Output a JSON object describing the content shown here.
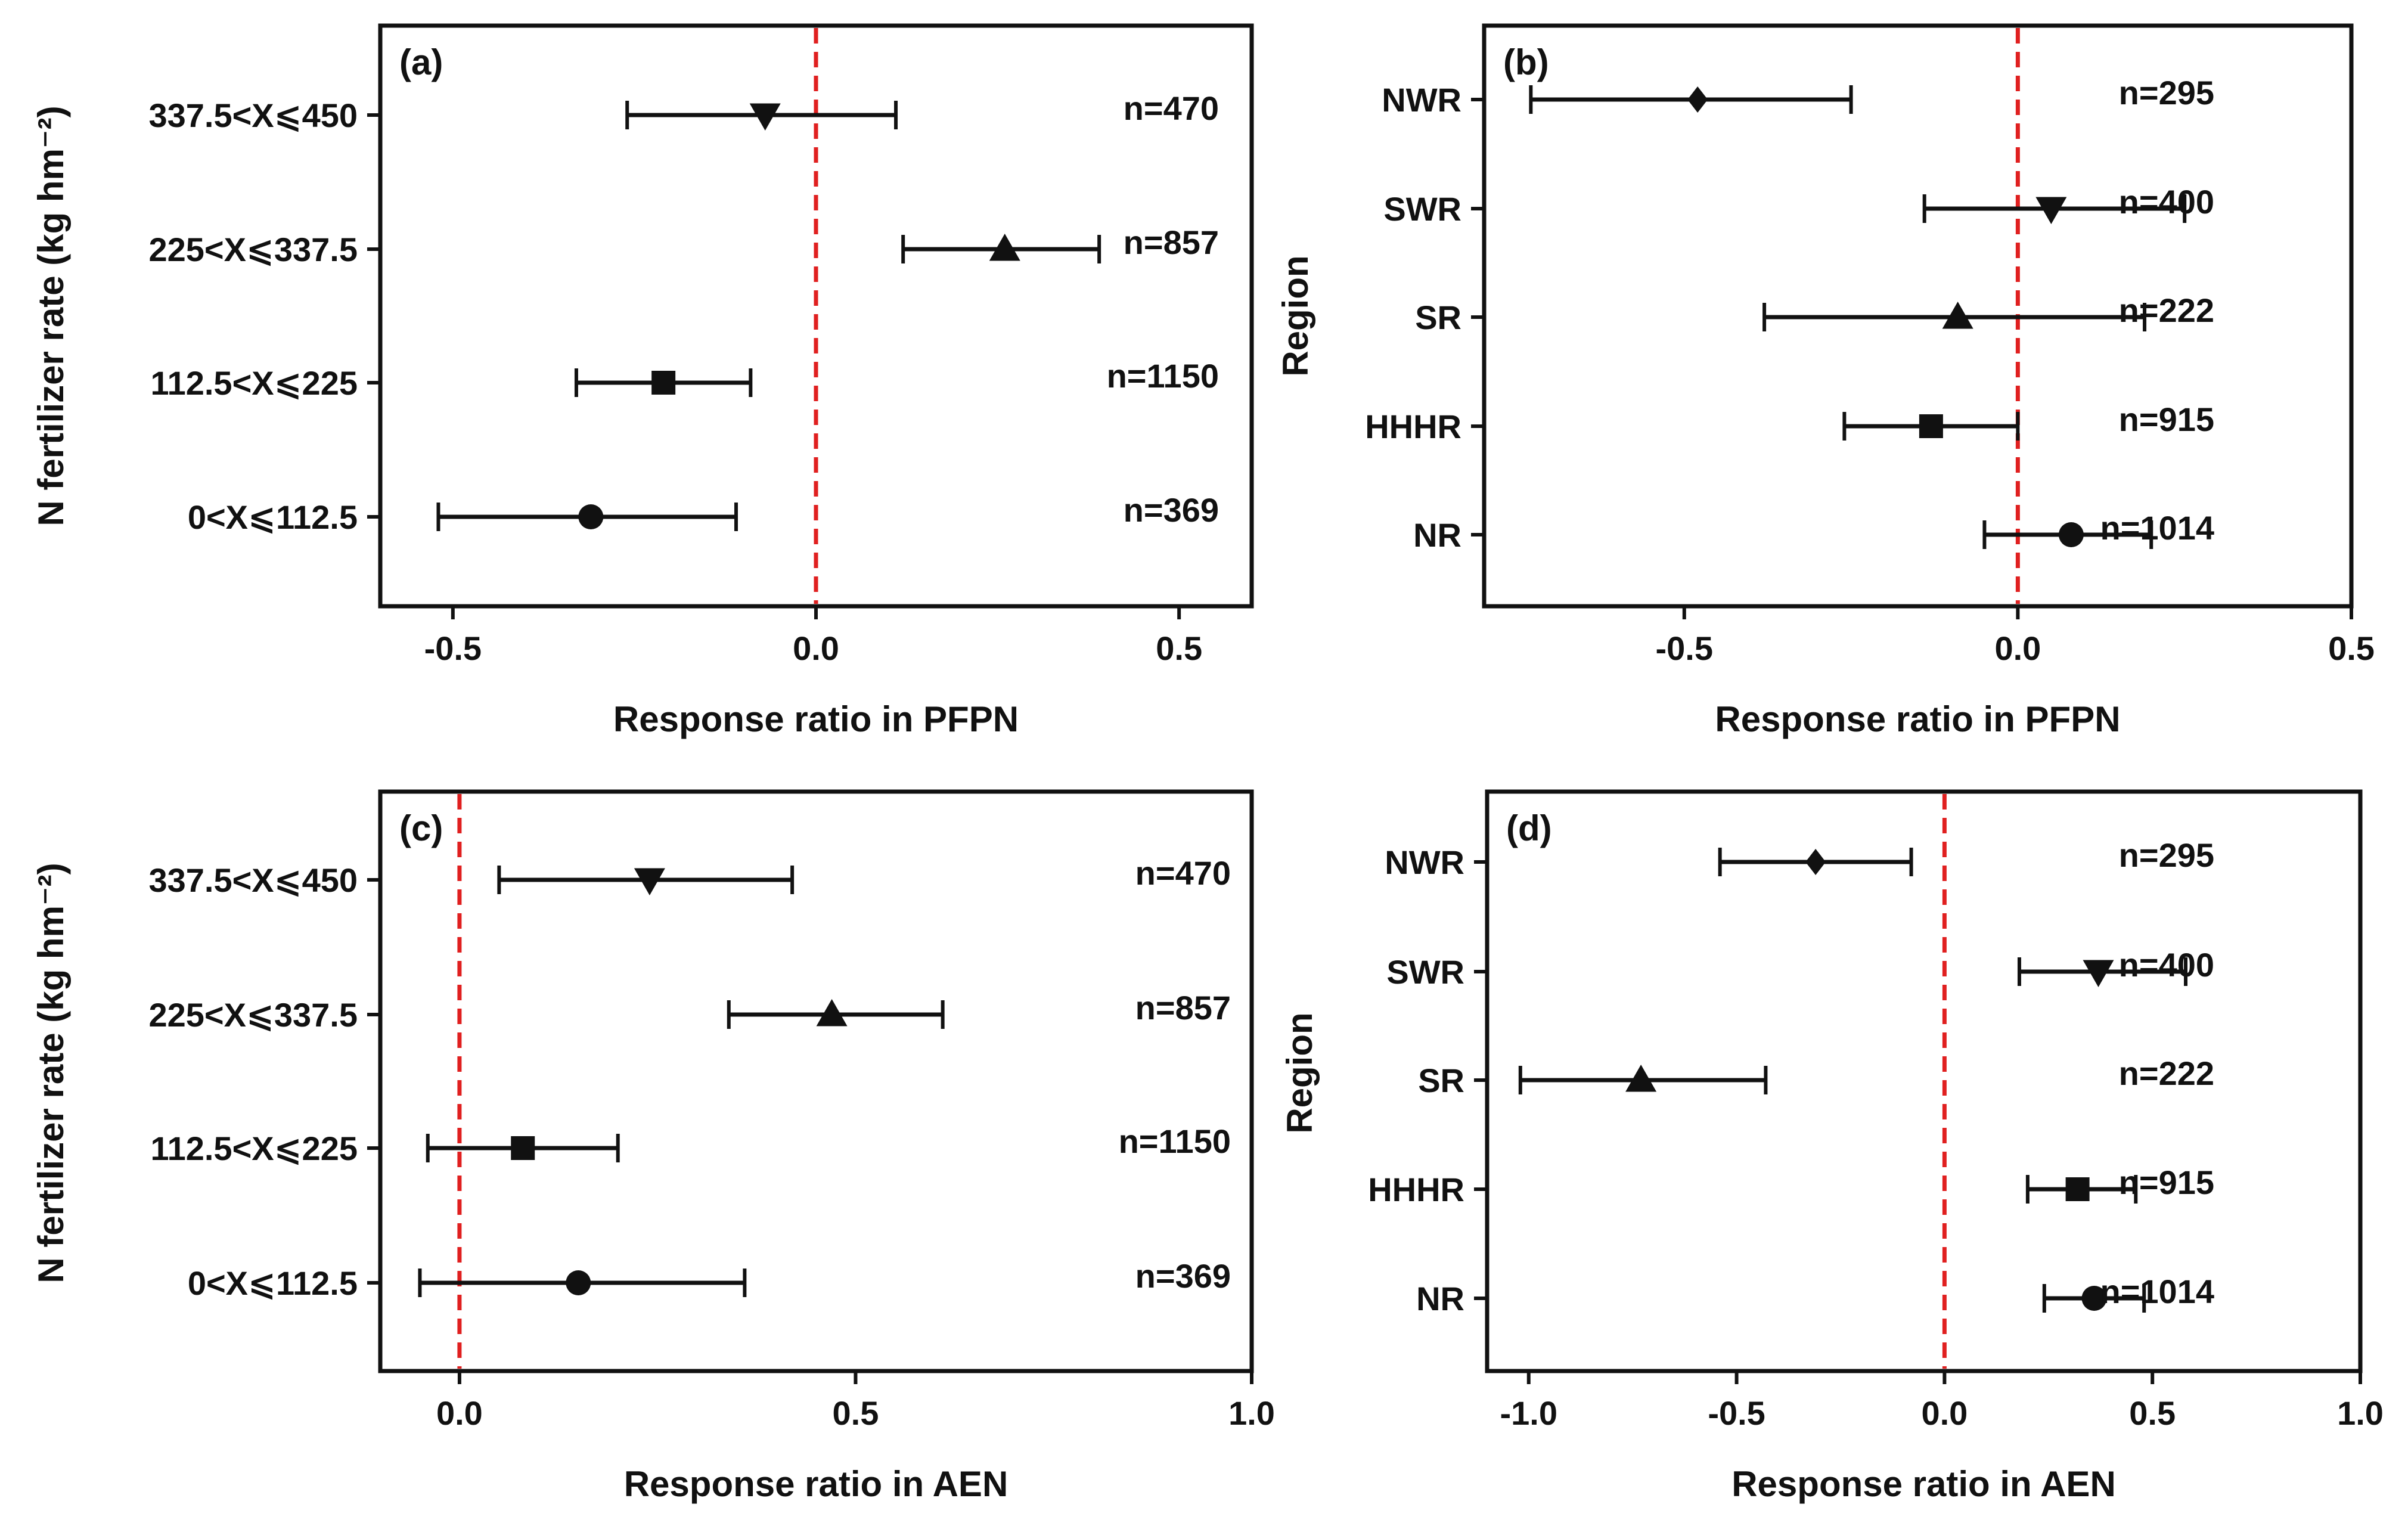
{
  "figure": {
    "colors": {
      "axis": "#111111",
      "reference_line": "#e02020",
      "marker": "#111111",
      "background": "#ffffff"
    }
  },
  "chart_data": [
    {
      "type": "forest",
      "panel_label": "(a)",
      "title": "",
      "xlabel": "Response ratio in PFPN",
      "ylabel": "N fertilizer rate (kg hm⁻²)",
      "xlim": [
        -0.6,
        0.6
      ],
      "xticks": [
        -0.5,
        0.0,
        0.5
      ],
      "xtick_labels": [
        "-0.5",
        "0.0",
        "0.5"
      ],
      "reference_line": 0,
      "categories": [
        "337.5<X⩽450",
        "225<X⩽337.5",
        "112.5<X⩽225",
        "0<X⩽112.5"
      ],
      "mean": [
        -0.07,
        0.26,
        -0.21,
        -0.31
      ],
      "lower": [
        -0.26,
        0.12,
        -0.33,
        -0.52
      ],
      "upper": [
        0.11,
        0.39,
        -0.09,
        -0.11
      ],
      "markers": [
        "triangle-down",
        "triangle-up",
        "square",
        "circle"
      ],
      "n_labels": [
        "n=470",
        "n=857",
        "n=1150",
        "n=369"
      ]
    },
    {
      "type": "forest",
      "panel_label": "(b)",
      "title": "",
      "xlabel": "Response ratio in PFPN",
      "ylabel": "Region",
      "xlim": [
        -0.8,
        0.5
      ],
      "xticks": [
        -0.5,
        0.0,
        0.5
      ],
      "xtick_labels": [
        "-0.5",
        "0.0",
        "0.5"
      ],
      "reference_line": 0,
      "categories": [
        "NWR",
        "SWR",
        "SR",
        "HHHR",
        "NR"
      ],
      "mean": [
        -0.48,
        0.05,
        -0.09,
        -0.13,
        0.08
      ],
      "lower": [
        -0.73,
        -0.14,
        -0.38,
        -0.26,
        -0.05
      ],
      "upper": [
        -0.25,
        0.25,
        0.19,
        0.0,
        0.2
      ],
      "markers": [
        "diamond",
        "triangle-down",
        "triangle-up",
        "square",
        "circle"
      ],
      "n_labels": [
        "n=295",
        "n=400",
        "n=222",
        "n=915",
        "n=1014"
      ]
    },
    {
      "type": "forest",
      "panel_label": "(c)",
      "title": "",
      "xlabel": "Response ratio in AEN",
      "ylabel": "N fertilizer rate (kg hm⁻²)",
      "xlim": [
        -0.1,
        1.0
      ],
      "xticks": [
        0.0,
        0.5,
        1.0
      ],
      "xtick_labels": [
        "0.0",
        "0.5",
        "1.0"
      ],
      "reference_line": 0,
      "categories": [
        "337.5<X⩽450",
        "225<X⩽337.5",
        "112.5<X⩽225",
        "0<X⩽112.5"
      ],
      "mean": [
        0.24,
        0.47,
        0.08,
        0.15
      ],
      "lower": [
        0.05,
        0.34,
        -0.04,
        -0.05
      ],
      "upper": [
        0.42,
        0.61,
        0.2,
        0.36
      ],
      "markers": [
        "triangle-down",
        "triangle-up",
        "square",
        "circle"
      ],
      "n_labels": [
        "n=470",
        "n=857",
        "n=1150",
        "n=369"
      ]
    },
    {
      "type": "forest",
      "panel_label": "(d)",
      "title": "",
      "xlabel": "Response ratio in AEN",
      "ylabel": "Region",
      "xlim": [
        -1.1,
        1.0
      ],
      "xticks": [
        -1.0,
        -0.5,
        0.0,
        0.5,
        1.0
      ],
      "xtick_labels": [
        "-1.0",
        "-0.5",
        "0.0",
        "0.5",
        "1.0"
      ],
      "reference_line": 0,
      "categories": [
        "NWR",
        "SWR",
        "SR",
        "HHHR",
        "NR"
      ],
      "mean": [
        -0.31,
        0.37,
        -0.73,
        0.32,
        0.36
      ],
      "lower": [
        -0.54,
        0.18,
        -1.02,
        0.2,
        0.24
      ],
      "upper": [
        -0.08,
        0.58,
        -0.43,
        0.46,
        0.48
      ],
      "markers": [
        "diamond",
        "triangle-down",
        "triangle-up",
        "square",
        "circle"
      ],
      "n_labels": [
        "n=295",
        "n=400",
        "n=222",
        "n=915",
        "n=1014"
      ]
    }
  ]
}
